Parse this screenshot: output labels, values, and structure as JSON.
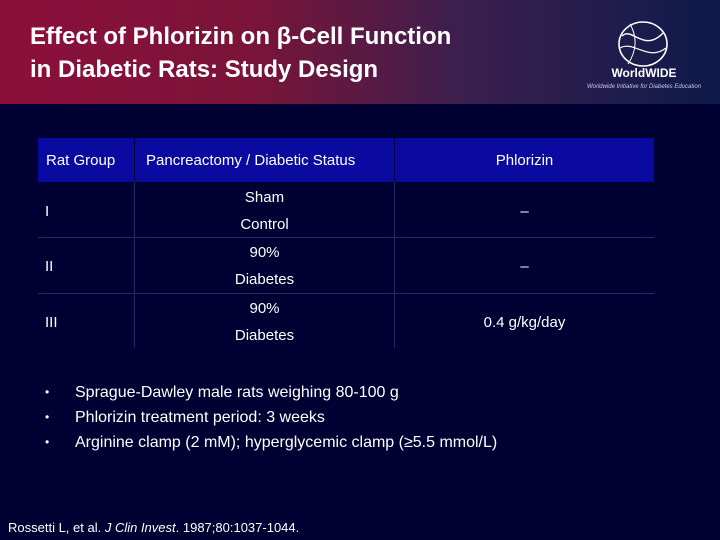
{
  "header": {
    "title_line1": "Effect of Phlorizin on β-Cell Function",
    "title_line2": "in Diabetic Rats: Study Design",
    "logo_text": "WorldWIDE",
    "logo_tagline": "Worldwide Initiative for Diabetes Education",
    "gradient_colors": [
      "#8c0f3a",
      "#3a1f4e",
      "#0d1a4a"
    ]
  },
  "table": {
    "header_color": "#0a0aa0",
    "columns": [
      "Rat Group",
      "Pancreactomy / Diabetic Status",
      "Phlorizin"
    ],
    "rows": [
      {
        "group": "I",
        "status_line1": "Sham",
        "status_line2": "Control",
        "phlorizin": "–"
      },
      {
        "group": "II",
        "status_line1": "90%",
        "status_line2": "Diabetes",
        "phlorizin": "–"
      },
      {
        "group": "III",
        "status_line1": "90%",
        "status_line2": "Diabetes",
        "phlorizin": "0.4 g/kg/day"
      }
    ]
  },
  "bullets": [
    {
      "marker": "•",
      "text": "Sprague-Dawley male rats weighing 80-100 g"
    },
    {
      "marker": "•",
      "text": "Phlorizin treatment period: 3 weeks"
    },
    {
      "marker": "•",
      "text": "Arginine clamp (2 mM); hyperglycemic clamp (≥5.5 mmol/L)"
    }
  ],
  "citation": {
    "prefix": "Rossetti L, et al. ",
    "journal": "J Clin Invest",
    "suffix": ". 1987;80:1037-1044."
  },
  "background_color": "#000033"
}
